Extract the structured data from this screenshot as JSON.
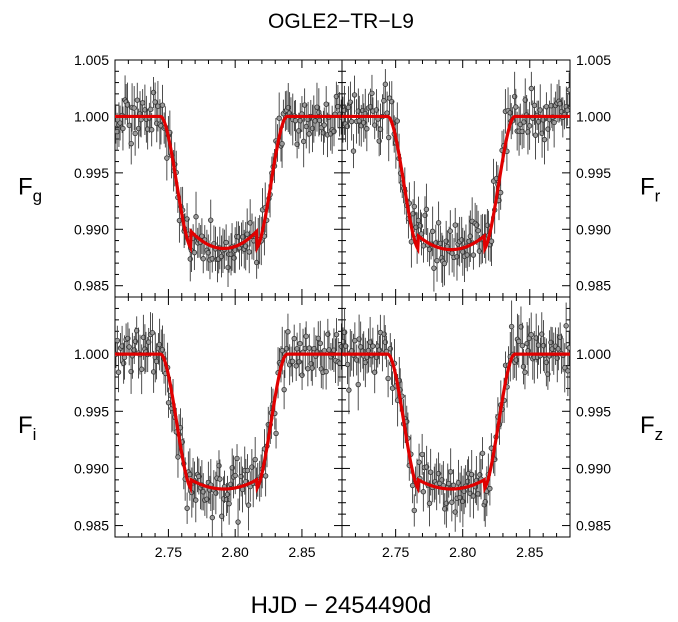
{
  "title": "OGLE2−TR−L9",
  "xlabel": "HJD − 2454490d",
  "chart_data": {
    "type": "scatter",
    "title": "OGLE2−TR−L9",
    "xlabel": "HJD − 2454490d",
    "xlim": [
      2.71,
      2.88
    ],
    "ylim": [
      0.984,
      1.005
    ],
    "x_ticks": [
      "2.75",
      "2.80",
      "2.85"
    ],
    "y_ticks": [
      "1.005",
      "1.000",
      "0.995",
      "0.990",
      "0.985"
    ],
    "grid": false,
    "model_color": "#e00000",
    "point_color": "#555555",
    "panels": [
      {
        "id": "g",
        "ylabel": "F",
        "ylabel_sub": "g",
        "y_axis_side": "left",
        "model": {
          "t1": 2.744,
          "t2": 2.767,
          "t3": 2.816,
          "t4": 2.839,
          "depth": 0.0117,
          "curve": 0.0015
        }
      },
      {
        "id": "r",
        "ylabel": "F",
        "ylabel_sub": "r",
        "y_axis_side": "right",
        "model": {
          "t1": 2.744,
          "t2": 2.767,
          "t3": 2.816,
          "t4": 2.839,
          "depth": 0.0118,
          "curve": 0.0012
        }
      },
      {
        "id": "i",
        "ylabel": "F",
        "ylabel_sub": "i",
        "y_axis_side": "left",
        "model": {
          "t1": 2.744,
          "t2": 2.767,
          "t3": 2.816,
          "t4": 2.839,
          "depth": 0.0118,
          "curve": 0.0008
        }
      },
      {
        "id": "z",
        "ylabel": "F",
        "ylabel_sub": "z",
        "y_axis_side": "right",
        "model": {
          "t1": 2.744,
          "t2": 2.767,
          "t3": 2.816,
          "t4": 2.839,
          "depth": 0.0118,
          "curve": 0.0008
        }
      }
    ]
  }
}
